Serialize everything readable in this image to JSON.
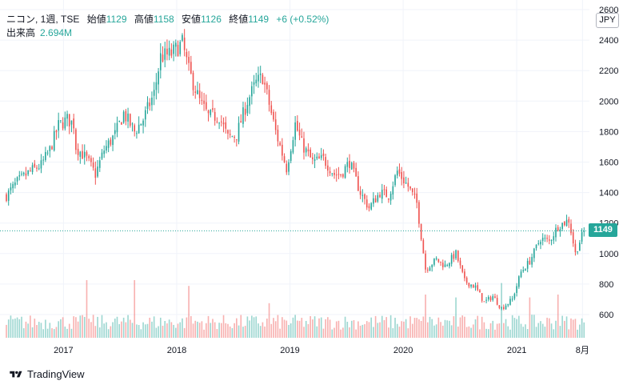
{
  "legend": {
    "title": "ニコン, 1週, TSE",
    "open_label": "始値",
    "open_value": "1129",
    "high_label": "高値",
    "high_value": "1158",
    "low_label": "安値",
    "low_value": "1126",
    "close_label": "終値",
    "close_value": "1149",
    "change": "+6 (+0.52%)",
    "volume_label": "出来高",
    "volume_value": "2.694M"
  },
  "currency": "JPY",
  "last_price_tag": "1149",
  "branding": {
    "logo_icon": "tradingview-logo-icon",
    "text": "TradingView"
  },
  "colors": {
    "up": "#26a69a",
    "down": "#ef5350",
    "grid": "#f0f3fa",
    "text": "#131722"
  },
  "chart_data": {
    "type": "candlestick",
    "title": "ニコン, 1週, TSE",
    "x_tick_labels": [
      "2017",
      "2018",
      "2019",
      "2020",
      "2021",
      "8月"
    ],
    "y_tick_labels": [
      "2600",
      "2400",
      "2200",
      "2000",
      "1800",
      "1600",
      "1400",
      "1200",
      "1000",
      "800",
      "600"
    ],
    "ylim": [
      460,
      2600
    ],
    "grid": true,
    "last_price": 1149,
    "last_price_line": "dotted",
    "anchors": [
      [
        "2016-07-01",
        1380
      ],
      [
        "2016-08-05",
        1470
      ],
      [
        "2016-09-16",
        1540
      ],
      [
        "2016-10-21",
        1580
      ],
      [
        "2016-11-18",
        1680
      ],
      [
        "2016-12-16",
        1840
      ],
      [
        "2017-01-13",
        1880
      ],
      [
        "2017-02-03",
        1850
      ],
      [
        "2017-02-10",
        1700
      ],
      [
        "2017-03-17",
        1620
      ],
      [
        "2017-04-14",
        1520
      ],
      [
        "2017-05-12",
        1680
      ],
      [
        "2017-06-16",
        1780
      ],
      [
        "2017-07-14",
        1920
      ],
      [
        "2017-08-18",
        1800
      ],
      [
        "2017-09-15",
        1880
      ],
      [
        "2017-10-20",
        2050
      ],
      [
        "2017-11-10",
        2290
      ],
      [
        "2017-12-15",
        2310
      ],
      [
        "2018-01-19",
        2380
      ],
      [
        "2018-02-09",
        2200
      ],
      [
        "2018-03-16",
        2000
      ],
      [
        "2018-04-13",
        1900
      ],
      [
        "2018-05-18",
        1900
      ],
      [
        "2018-06-15",
        1760
      ],
      [
        "2018-07-13",
        1780
      ],
      [
        "2018-08-17",
        2000
      ],
      [
        "2018-09-14",
        2120
      ],
      [
        "2018-10-05",
        2160
      ],
      [
        "2018-10-26",
        1980
      ],
      [
        "2018-11-16",
        1800
      ],
      [
        "2018-12-21",
        1560
      ],
      [
        "2019-01-18",
        1850
      ],
      [
        "2019-02-08",
        1720
      ],
      [
        "2019-03-15",
        1600
      ],
      [
        "2019-04-19",
        1620
      ],
      [
        "2019-05-24",
        1520
      ],
      [
        "2019-06-14",
        1520
      ],
      [
        "2019-07-12",
        1600
      ],
      [
        "2019-08-16",
        1400
      ],
      [
        "2019-09-13",
        1300
      ],
      [
        "2019-10-18",
        1400
      ],
      [
        "2019-11-15",
        1380
      ],
      [
        "2019-12-13",
        1540
      ],
      [
        "2020-01-17",
        1440
      ],
      [
        "2020-02-14",
        1330
      ],
      [
        "2020-03-13",
        900
      ],
      [
        "2020-04-17",
        960
      ],
      [
        "2020-05-15",
        920
      ],
      [
        "2020-06-19",
        1000
      ],
      [
        "2020-07-17",
        820
      ],
      [
        "2020-08-21",
        780
      ],
      [
        "2020-09-18",
        680
      ],
      [
        "2020-10-16",
        720
      ],
      [
        "2020-11-13",
        640
      ],
      [
        "2020-12-18",
        700
      ],
      [
        "2021-01-15",
        880
      ],
      [
        "2021-02-12",
        950
      ],
      [
        "2021-03-19",
        1100
      ],
      [
        "2021-04-16",
        1080
      ],
      [
        "2021-05-14",
        1180
      ],
      [
        "2021-06-18",
        1220
      ],
      [
        "2021-07-09",
        1000
      ],
      [
        "2021-07-23",
        1080
      ],
      [
        "2021-08-06",
        1149
      ]
    ],
    "volume": {
      "label": "出来高",
      "last": "2.694M",
      "typical_relative_height": 0.4,
      "spikes": [
        [
          "2017-03-17",
          1.0
        ],
        [
          "2017-08-18",
          1.0
        ],
        [
          "2018-02-09",
          0.9
        ],
        [
          "2018-10-26",
          0.6
        ],
        [
          "2020-03-13",
          0.75
        ],
        [
          "2020-06-19",
          0.7
        ],
        [
          "2020-11-13",
          0.95
        ],
        [
          "2021-02-12",
          0.7
        ],
        [
          "2021-05-14",
          0.75
        ]
      ]
    }
  }
}
